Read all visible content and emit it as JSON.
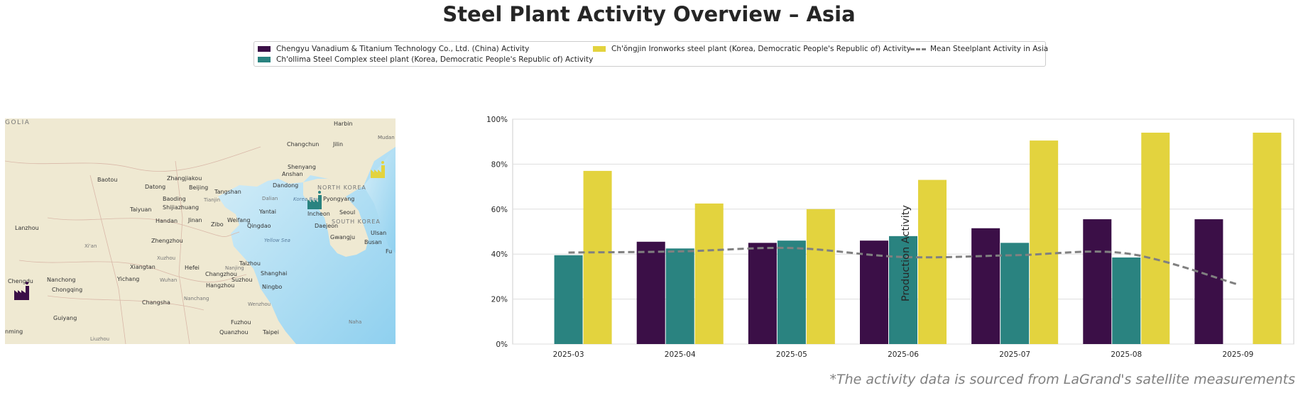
{
  "title": "Steel Plant Activity Overview – Asia",
  "legend": {
    "items": [
      {
        "label": "Chengyu Vanadium & Titanium Technology Co., Ltd. (China) Activity",
        "color": "#3b0f47"
      },
      {
        "label": "Ch'ollima Steel Complex steel plant (Korea, Democratic People's Republic of) Activity",
        "color": "#2a8380"
      },
      {
        "label": "Ch'ŏngjin Ironworks steel plant (Korea, Democratic People's Republic of) Activity",
        "color": "#e3d33e"
      },
      {
        "label": "Mean Steelplant Activity in Asia",
        "color": "#808080"
      }
    ]
  },
  "map": {
    "labels": {
      "mongolia": "GOLIA",
      "harbin": "Harbin",
      "changchun": "Changchun",
      "jilin": "Jilin",
      "shenyang": "Shenyang",
      "anshan": "Anshan",
      "dandong": "Dandong",
      "baotou": "Baotou",
      "zhangjiakou": "Zhangjiakou",
      "datong": "Datong",
      "beijing": "Beijing",
      "tangshan": "Tangshan",
      "tianjin": "Tianjin",
      "dalian": "Dalian",
      "korea_bay": "Korea Bay",
      "north_korea": "NORTH KOREA",
      "pyongyang": "Pyongyang",
      "baoding": "Baoding",
      "taiyuan": "Taiyuan",
      "shijiazhuang": "Shijiazhuang",
      "yantai": "Yantai",
      "incheon": "Incheon",
      "seoul": "Seoul",
      "lanzhou": "Lanzhou",
      "handan": "Handan",
      "jinan": "Jinan",
      "zibo": "Zibo",
      "weifang": "Weifang",
      "qingdao": "Qingdao",
      "daejeon": "Daejeon",
      "south_korea": "SOUTH KOREA",
      "xian": "Xi'an",
      "zhengzhou": "Zhengzhou",
      "yellow_sea": "Yellow Sea",
      "gwangju": "Gwangju",
      "ulsan": "Ulsan",
      "busan": "Busan",
      "xuzhou": "Xuzhou",
      "taizhou": "Taizhou",
      "xiangtan": "Xiangtan",
      "hefei": "Hefei",
      "nanjing": "Nanjing",
      "chengdu": "Chengdu",
      "nanchong": "Nanchong",
      "yichang": "Yichang",
      "wuhan": "Wuhan",
      "changzhou": "Changzhou",
      "suzhou": "Suzhou",
      "shanghai": "Shanghai",
      "chongqing": "Chongqing",
      "hangzhou": "Hangzhou",
      "ningbo": "Ningbo",
      "nanchang": "Nanchang",
      "changsha": "Changsha",
      "wenzhou": "Wenzhou",
      "fuzhou": "Fuzhou",
      "naha": "Naha",
      "guiyang": "Guiyang",
      "kunming": "nming",
      "quanzhou": "Quanzhou",
      "taipei": "Taipei",
      "liuzhou": "Liuzhou",
      "mudan": "Mudan",
      "fu": "Fu"
    }
  },
  "chart_data": {
    "type": "bar",
    "categories": [
      "2025-03",
      "2025-04",
      "2025-05",
      "2025-06",
      "2025-07",
      "2025-08",
      "2025-09"
    ],
    "series": [
      {
        "name": "Chengyu Vanadium & Titanium Technology Co., Ltd. (China) Activity",
        "color": "#3b0f47",
        "values": [
          null,
          45.5,
          45,
          46,
          51.5,
          55.5,
          55.5
        ]
      },
      {
        "name": "Ch'ollima Steel Complex steel plant (Korea, Democratic People's Republic of) Activity",
        "color": "#2a8380",
        "values": [
          39.5,
          42.5,
          46,
          48,
          45,
          38.5,
          null
        ]
      },
      {
        "name": "Ch'ŏngjin Ironworks steel plant (Korea, Democratic People's Republic of) Activity",
        "color": "#e3d33e",
        "values": [
          77,
          62.5,
          60,
          73,
          90.5,
          94,
          94
        ]
      }
    ],
    "mean_line": {
      "name": "Mean Steelplant Activity in Asia",
      "color": "#808080",
      "style": "dashed",
      "values": [
        40.7,
        41.2,
        42.7,
        38.7,
        39.5,
        40.3,
        26.5
      ]
    },
    "ylabel": "Production Activity",
    "xlabel": "",
    "ylim": [
      0,
      100
    ],
    "yticks": [
      "0%",
      "20%",
      "40%",
      "60%",
      "80%",
      "100%"
    ],
    "ytick_values": [
      0,
      20,
      40,
      60,
      80,
      100
    ],
    "grid": true
  },
  "footnote": "*The activity data is sourced from LaGrand's satellite measurements"
}
